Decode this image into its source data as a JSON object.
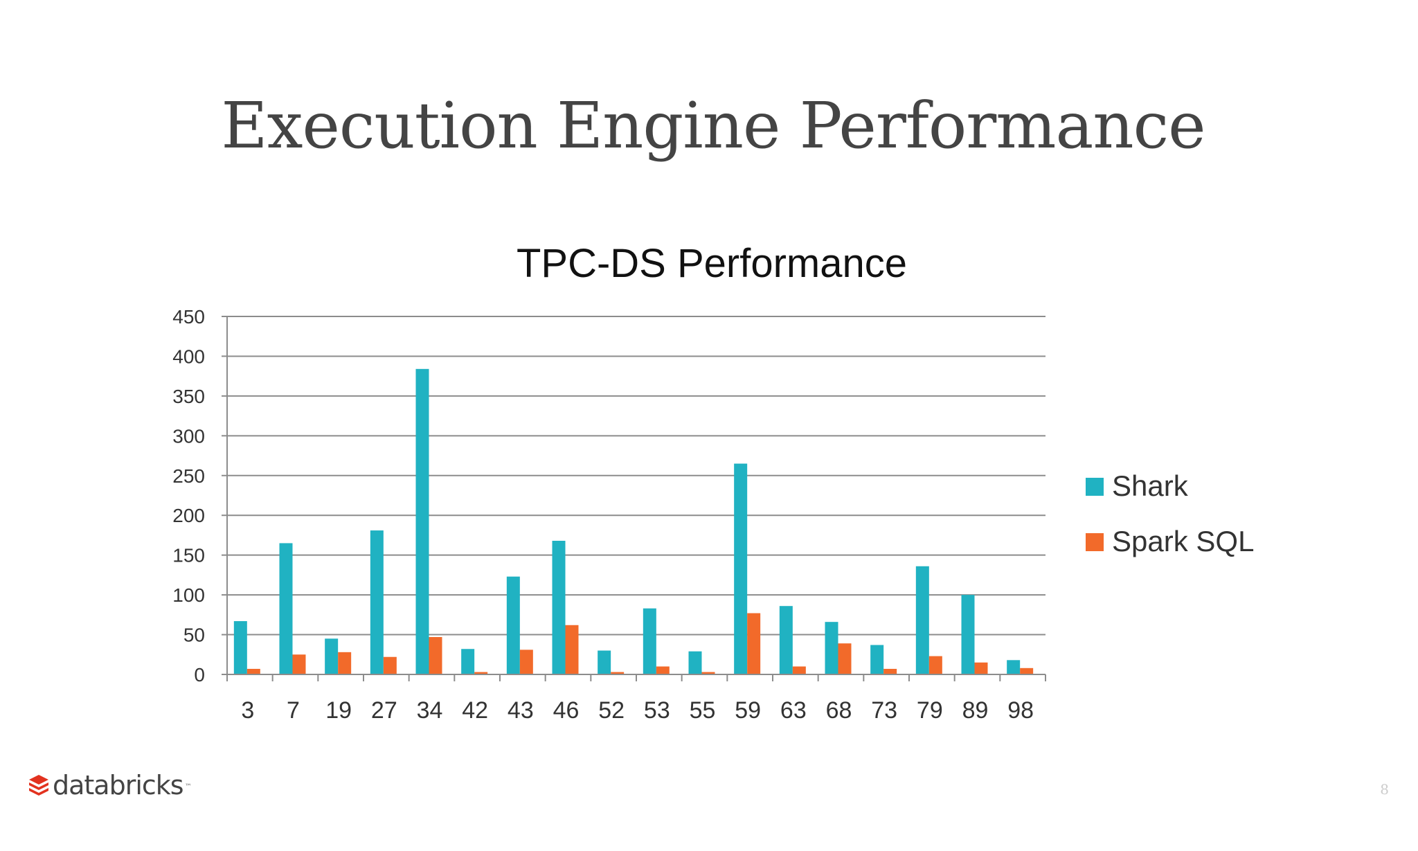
{
  "slide": {
    "title": "Execution Engine Performance",
    "page_number": "8"
  },
  "brand": {
    "name": "databricks",
    "trademark": "™"
  },
  "colors": {
    "shark": "#20B2C2",
    "spark_sql": "#F26A2A",
    "grid": "#8c8c8c",
    "text": "#333333"
  },
  "chart_data": {
    "type": "bar",
    "title": "TPC-DS Performance",
    "xlabel": "",
    "ylabel": "",
    "ylim": [
      0,
      450
    ],
    "yticks": [
      0,
      50,
      100,
      150,
      200,
      250,
      300,
      350,
      400,
      450
    ],
    "grid": true,
    "legend_position": "right",
    "categories": [
      "3",
      "7",
      "19",
      "27",
      "34",
      "42",
      "43",
      "46",
      "52",
      "53",
      "55",
      "59",
      "63",
      "68",
      "73",
      "79",
      "89",
      "98"
    ],
    "series": [
      {
        "name": "Shark",
        "color": "#20B2C2",
        "values": [
          67,
          165,
          45,
          181,
          384,
          32,
          123,
          168,
          30,
          83,
          29,
          265,
          86,
          66,
          37,
          136,
          100,
          18
        ]
      },
      {
        "name": "Spark SQL",
        "color": "#F26A2A",
        "values": [
          7,
          25,
          28,
          22,
          47,
          3,
          31,
          62,
          3,
          10,
          3,
          77,
          10,
          39,
          7,
          23,
          15,
          8
        ]
      }
    ]
  }
}
